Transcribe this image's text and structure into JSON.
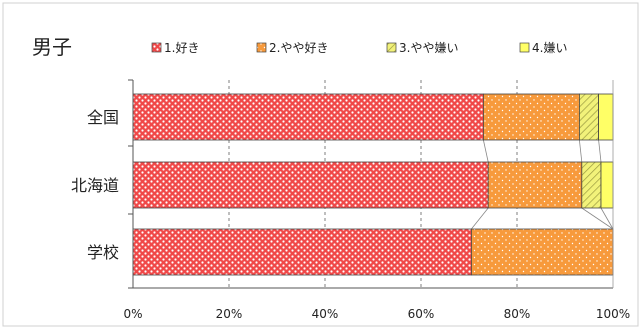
{
  "chart_data": {
    "type": "bar",
    "orientation": "horizontal",
    "stacked": true,
    "percent": true,
    "title": "男子",
    "categories": [
      "全国",
      "北海道",
      "学校"
    ],
    "series": [
      {
        "name": "1.好き",
        "values": [
          73,
          74,
          70.5
        ]
      },
      {
        "name": "2.やや好き",
        "values": [
          20,
          19.5,
          29.5
        ]
      },
      {
        "name": "3.やや嫌い",
        "values": [
          4,
          4,
          0
        ]
      },
      {
        "name": "4.嫌い",
        "values": [
          3,
          2.5,
          0
        ]
      }
    ],
    "xlim": [
      0,
      100
    ],
    "xticks": [
      "0%",
      "20%",
      "40%",
      "60%",
      "80%",
      "100%"
    ],
    "grid": "vertical-dashed",
    "legend": "top",
    "series_connector_lines": true,
    "colors": {
      "s1": "#f04848",
      "s2": "#f79a3c",
      "s3": "#f2f27a",
      "s4": "#ffff66",
      "frame": "#bfbfbf",
      "grid": "#7f7f7f"
    }
  }
}
